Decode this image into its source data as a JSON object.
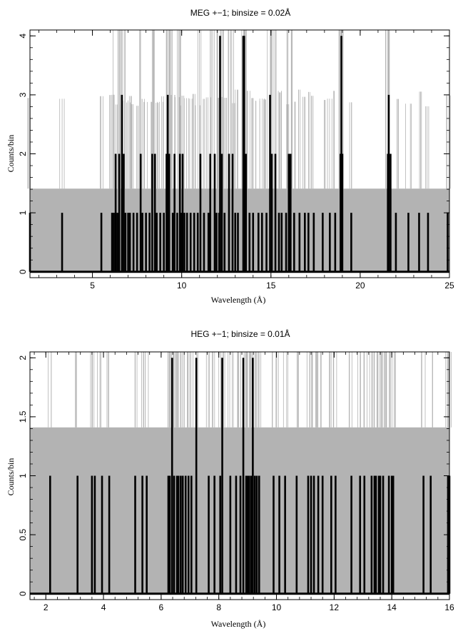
{
  "chart_data": [
    {
      "type": "line",
      "title": "MEG +−1; binsize = 0.02Å",
      "xlabel": "Wavelength (Å)",
      "ylabel": "Counts/bin",
      "xlim": [
        1.5,
        25
      ],
      "ylim": [
        -0.1,
        4.1
      ],
      "x_ticks": [
        "5",
        "10",
        "15",
        "20",
        "25"
      ],
      "x_tick_values": [
        5,
        10,
        15,
        20,
        25
      ],
      "y_ticks": [
        "0",
        "1",
        "2",
        "3",
        "4"
      ],
      "y_tick_values": [
        0,
        1,
        2,
        3,
        4
      ],
      "grid": false,
      "band_level": 1.41,
      "colors": {
        "counts": "#000000",
        "error_bars": "#b3b3b3"
      },
      "series": [
        {
          "points": [
            [
              1.5,
              1
            ],
            [
              3.3,
              1
            ],
            [
              5.5,
              1
            ],
            [
              6.1,
              1
            ],
            [
              6.2,
              1
            ],
            [
              6.3,
              2
            ],
            [
              6.4,
              1
            ],
            [
              6.5,
              2
            ],
            [
              6.65,
              3
            ],
            [
              6.75,
              2
            ],
            [
              6.85,
              1
            ],
            [
              7.0,
              1
            ],
            [
              7.1,
              1
            ],
            [
              7.3,
              1
            ],
            [
              7.5,
              1
            ],
            [
              7.7,
              2
            ],
            [
              7.8,
              1
            ],
            [
              8.0,
              1
            ],
            [
              8.2,
              1
            ],
            [
              8.35,
              2
            ],
            [
              8.5,
              2
            ],
            [
              8.6,
              1
            ],
            [
              8.8,
              1
            ],
            [
              9.0,
              1
            ],
            [
              9.15,
              2
            ],
            [
              9.22,
              3
            ],
            [
              9.3,
              2
            ],
            [
              9.5,
              1
            ],
            [
              9.6,
              2
            ],
            [
              9.75,
              1
            ],
            [
              9.9,
              2
            ],
            [
              10.0,
              1
            ],
            [
              10.05,
              2
            ],
            [
              10.15,
              1
            ],
            [
              10.3,
              1
            ],
            [
              10.5,
              1
            ],
            [
              10.7,
              1
            ],
            [
              10.9,
              1
            ],
            [
              11.05,
              2
            ],
            [
              11.25,
              1
            ],
            [
              11.5,
              1
            ],
            [
              11.6,
              2
            ],
            [
              11.85,
              2
            ],
            [
              11.95,
              1
            ],
            [
              12.1,
              1
            ],
            [
              12.15,
              4
            ],
            [
              12.25,
              2
            ],
            [
              12.4,
              1
            ],
            [
              12.65,
              2
            ],
            [
              12.85,
              2
            ],
            [
              13.0,
              1
            ],
            [
              13.15,
              1
            ],
            [
              13.45,
              4
            ],
            [
              13.5,
              4
            ],
            [
              13.6,
              2
            ],
            [
              13.8,
              1
            ],
            [
              14.0,
              1
            ],
            [
              14.3,
              1
            ],
            [
              14.5,
              1
            ],
            [
              14.75,
              1
            ],
            [
              14.95,
              3
            ],
            [
              15.05,
              2
            ],
            [
              15.25,
              2
            ],
            [
              15.45,
              1
            ],
            [
              15.6,
              1
            ],
            [
              15.85,
              1
            ],
            [
              16.0,
              2
            ],
            [
              16.1,
              2
            ],
            [
              16.3,
              1
            ],
            [
              16.6,
              1
            ],
            [
              16.9,
              1
            ],
            [
              17.1,
              1
            ],
            [
              17.4,
              1
            ],
            [
              17.9,
              1
            ],
            [
              18.3,
              1
            ],
            [
              18.6,
              1
            ],
            [
              18.9,
              2
            ],
            [
              18.95,
              4
            ],
            [
              19.0,
              2
            ],
            [
              19.5,
              1
            ],
            [
              21.55,
              2
            ],
            [
              21.6,
              3
            ],
            [
              21.7,
              2
            ],
            [
              22.0,
              1
            ],
            [
              22.7,
              1
            ],
            [
              23.3,
              1
            ],
            [
              23.8,
              1
            ],
            [
              24.9,
              1
            ]
          ]
        }
      ]
    },
    {
      "type": "line",
      "title": "HEG +−1; binsize = 0.01Å",
      "xlabel": "Wavelength (Å)",
      "ylabel": "Counts/bin",
      "xlim": [
        1.45,
        16
      ],
      "ylim": [
        -0.05,
        2.05
      ],
      "x_ticks": [
        "2",
        "4",
        "6",
        "8",
        "10",
        "12",
        "14",
        "16"
      ],
      "x_tick_values": [
        2,
        4,
        6,
        8,
        10,
        12,
        14,
        16
      ],
      "y_ticks": [
        "0",
        "0.5",
        "1",
        "1.5",
        "2"
      ],
      "y_tick_values": [
        0,
        0.5,
        1,
        1.5,
        2
      ],
      "grid": false,
      "band_level": 1.41,
      "colors": {
        "counts": "#000000",
        "error_bars": "#b3b3b3"
      },
      "series": [
        {
          "points": [
            [
              2.15,
              1
            ],
            [
              3.1,
              1
            ],
            [
              3.6,
              1
            ],
            [
              3.7,
              1
            ],
            [
              3.95,
              1
            ],
            [
              4.2,
              1
            ],
            [
              5.1,
              1
            ],
            [
              5.35,
              1
            ],
            [
              5.5,
              1
            ],
            [
              6.25,
              1
            ],
            [
              6.3,
              1
            ],
            [
              6.38,
              2
            ],
            [
              6.45,
              1
            ],
            [
              6.55,
              1
            ],
            [
              6.6,
              1
            ],
            [
              6.68,
              1
            ],
            [
              6.75,
              1
            ],
            [
              6.85,
              1
            ],
            [
              6.95,
              1
            ],
            [
              7.05,
              1
            ],
            [
              7.22,
              2
            ],
            [
              7.65,
              1
            ],
            [
              7.85,
              1
            ],
            [
              8.05,
              1
            ],
            [
              8.12,
              2
            ],
            [
              8.4,
              1
            ],
            [
              8.6,
              1
            ],
            [
              8.75,
              1
            ],
            [
              8.85,
              2
            ],
            [
              8.95,
              1
            ],
            [
              9.0,
              1
            ],
            [
              9.05,
              1
            ],
            [
              9.12,
              1
            ],
            [
              9.18,
              2
            ],
            [
              9.25,
              1
            ],
            [
              9.32,
              1
            ],
            [
              9.4,
              1
            ],
            [
              9.9,
              1
            ],
            [
              10.1,
              1
            ],
            [
              10.3,
              1
            ],
            [
              10.7,
              1
            ],
            [
              11.1,
              1
            ],
            [
              11.2,
              1
            ],
            [
              11.3,
              1
            ],
            [
              11.45,
              1
            ],
            [
              11.6,
              1
            ],
            [
              11.9,
              1
            ],
            [
              12.05,
              1
            ],
            [
              12.6,
              1
            ],
            [
              12.9,
              1
            ],
            [
              13.05,
              1
            ],
            [
              13.3,
              1
            ],
            [
              13.4,
              1
            ],
            [
              13.45,
              1
            ],
            [
              13.55,
              1
            ],
            [
              13.6,
              1
            ],
            [
              13.7,
              1
            ],
            [
              13.9,
              1
            ],
            [
              14.0,
              1
            ],
            [
              14.05,
              1
            ],
            [
              15.1,
              1
            ],
            [
              15.35,
              1
            ],
            [
              15.95,
              1
            ],
            [
              16.0,
              1
            ]
          ]
        }
      ]
    }
  ]
}
